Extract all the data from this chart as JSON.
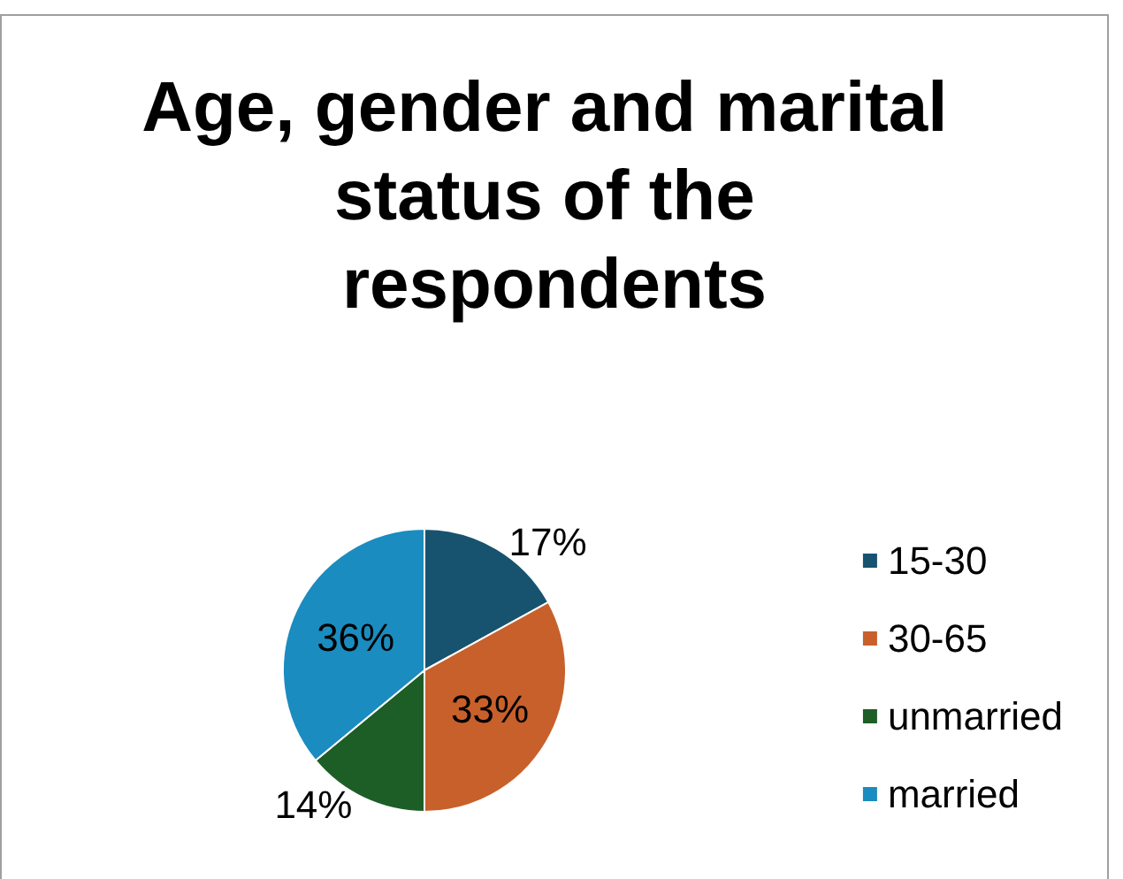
{
  "chart_data": {
    "type": "pie",
    "title": "Age, gender and marital status of the respondents",
    "categories": [
      "15-30",
      "30-65",
      "unmarried",
      "married"
    ],
    "values": [
      17,
      33,
      14,
      36
    ],
    "value_labels": [
      "17%",
      "33%",
      "14%",
      "36%"
    ],
    "colors": [
      "#17536f",
      "#c8602b",
      "#1d5e26",
      "#1a8cbf"
    ],
    "legend": "right"
  }
}
